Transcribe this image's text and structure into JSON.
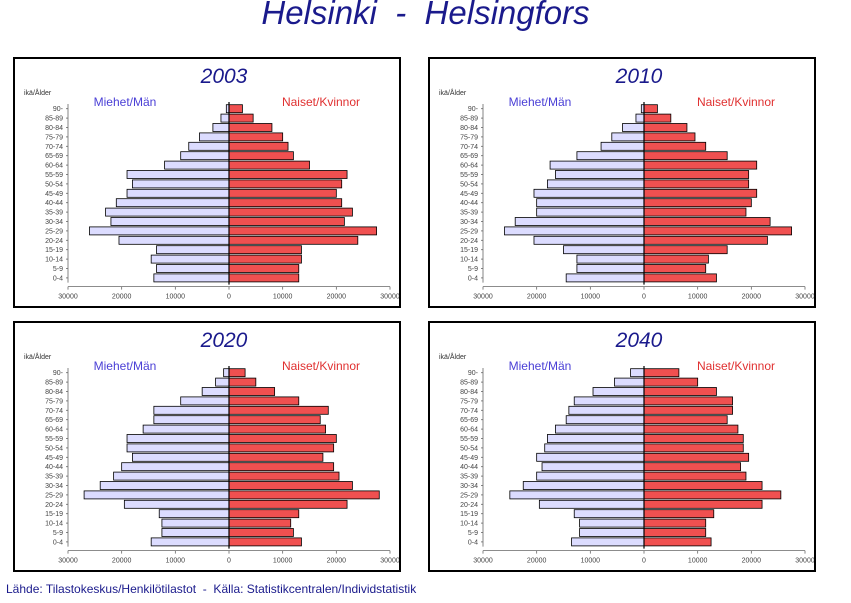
{
  "title": "Helsinki  -  Helsingfors",
  "source": "Lähde: Tilastokeskus/Henkilötilastot  -  Källa: Statistikcentralen/Individstatistik",
  "colors": {
    "title": "#1a1a8c",
    "men_fill": "#dcdcff",
    "women_fill": "#f05050",
    "men_label": "#4a3fd6",
    "women_label": "#e03030"
  },
  "chart_data": [
    {
      "type": "bar",
      "title": "2003",
      "age_label": "ikä/Ålder",
      "series_labels": {
        "men": "Miehet/Män",
        "women": "Naiset/Kvinnor"
      },
      "categories": [
        "0-4",
        "5-9",
        "10-14",
        "15-19",
        "20-24",
        "25-29",
        "30-34",
        "35-39",
        "40-44",
        "45-49",
        "50-54",
        "55-59",
        "60-64",
        "65-69",
        "70-74",
        "75-79",
        "80-84",
        "85-89",
        "90-"
      ],
      "series": [
        {
          "name": "Miehet/Män",
          "values": [
            14000,
            13500,
            14500,
            13500,
            20500,
            26000,
            22000,
            23000,
            21000,
            19000,
            18000,
            19000,
            12000,
            9000,
            7500,
            5500,
            3000,
            1500,
            500
          ]
        },
        {
          "name": "Naiset/Kvinnor",
          "values": [
            13000,
            13000,
            13500,
            13500,
            24000,
            27500,
            21500,
            23000,
            21000,
            20000,
            21000,
            22000,
            15000,
            12000,
            11000,
            10000,
            8000,
            4500,
            2500
          ]
        }
      ],
      "x_ticks": [
        "30000",
        "20000",
        "10000",
        "0",
        "10000",
        "20000",
        "30000"
      ],
      "xlim": [
        -30000,
        30000
      ]
    },
    {
      "type": "bar",
      "title": "2010",
      "age_label": "ikä/Ålder",
      "series_labels": {
        "men": "Miehet/Män",
        "women": "Naiset/Kvinnor"
      },
      "categories": [
        "0-4",
        "5-9",
        "10-14",
        "15-19",
        "20-24",
        "25-29",
        "30-34",
        "35-39",
        "40-44",
        "45-49",
        "50-54",
        "55-59",
        "60-64",
        "65-69",
        "70-74",
        "75-79",
        "80-84",
        "85-89",
        "90-"
      ],
      "series": [
        {
          "name": "Miehet/Män",
          "values": [
            14500,
            12500,
            12500,
            15000,
            20500,
            26000,
            24000,
            20000,
            20000,
            20500,
            18000,
            16500,
            17500,
            12500,
            8000,
            6000,
            4000,
            1500,
            500
          ]
        },
        {
          "name": "Naiset/Kvinnor",
          "values": [
            13500,
            11500,
            12000,
            15500,
            23000,
            27500,
            23500,
            19000,
            20000,
            21000,
            19500,
            19500,
            21000,
            15500,
            11500,
            9500,
            8000,
            5000,
            2500
          ]
        }
      ],
      "x_ticks": [
        "30000",
        "20000",
        "10000",
        "0",
        "10000",
        "20000",
        "30000"
      ],
      "xlim": [
        -30000,
        30000
      ]
    },
    {
      "type": "bar",
      "title": "2020",
      "age_label": "ikä/Ålder",
      "series_labels": {
        "men": "Miehet/Män",
        "women": "Naiset/Kvinnor"
      },
      "categories": [
        "0-4",
        "5-9",
        "10-14",
        "15-19",
        "20-24",
        "25-29",
        "30-34",
        "35-39",
        "40-44",
        "45-49",
        "50-54",
        "55-59",
        "60-64",
        "65-69",
        "70-74",
        "75-79",
        "80-84",
        "85-89",
        "90-"
      ],
      "series": [
        {
          "name": "Miehet/Män",
          "values": [
            14500,
            12500,
            12500,
            13000,
            19500,
            27000,
            24000,
            21500,
            20000,
            18000,
            19000,
            19000,
            16000,
            14000,
            14000,
            9000,
            5000,
            2500,
            1000
          ]
        },
        {
          "name": "Naiset/Kvinnor",
          "values": [
            13500,
            12000,
            11500,
            13000,
            22000,
            28000,
            23000,
            20500,
            19500,
            17500,
            19500,
            20000,
            18000,
            17000,
            18500,
            13000,
            8500,
            5000,
            3000
          ]
        }
      ],
      "x_ticks": [
        "30000",
        "20000",
        "10000",
        "0",
        "10000",
        "20000",
        "30000"
      ],
      "xlim": [
        -30000,
        30000
      ]
    },
    {
      "type": "bar",
      "title": "2040",
      "age_label": "ikä/Ålder",
      "series_labels": {
        "men": "Miehet/Män",
        "women": "Naiset/Kvinnor"
      },
      "categories": [
        "0-4",
        "5-9",
        "10-14",
        "15-19",
        "20-24",
        "25-29",
        "30-34",
        "35-39",
        "40-44",
        "45-49",
        "50-54",
        "55-59",
        "60-64",
        "65-69",
        "70-74",
        "75-79",
        "80-84",
        "85-89",
        "90-"
      ],
      "series": [
        {
          "name": "Miehet/Män",
          "values": [
            13500,
            12000,
            12000,
            13000,
            19500,
            25000,
            22500,
            20000,
            19000,
            20000,
            18500,
            18000,
            16500,
            14500,
            14000,
            13000,
            9500,
            5500,
            2500
          ]
        },
        {
          "name": "Naiset/Kvinnor",
          "values": [
            12500,
            11500,
            11500,
            13000,
            22000,
            25500,
            22000,
            19000,
            18000,
            19500,
            18500,
            18500,
            17500,
            15500,
            16500,
            16500,
            13500,
            10000,
            6500
          ]
        }
      ],
      "x_ticks": [
        "30000",
        "20000",
        "10000",
        "0",
        "10000",
        "20000",
        "30000"
      ],
      "xlim": [
        -30000,
        30000
      ]
    }
  ]
}
